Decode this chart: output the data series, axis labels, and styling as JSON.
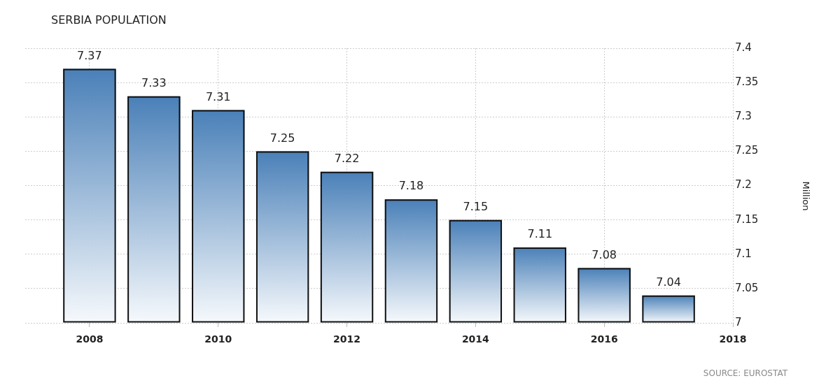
{
  "chart_data": {
    "type": "bar",
    "title": "SERBIA POPULATION",
    "ylabel": "Million",
    "annotations": [
      "SOURCE: EUROSTAT"
    ],
    "x": [
      2008,
      2009,
      2010,
      2011,
      2012,
      2013,
      2014,
      2015,
      2016,
      2017
    ],
    "values": [
      7.37,
      7.33,
      7.31,
      7.25,
      7.22,
      7.18,
      7.15,
      7.11,
      7.08,
      7.04
    ],
    "color": "#4a80b8",
    "xlim": [
      2007,
      2018
    ],
    "xticks": [
      2008,
      2010,
      2012,
      2014,
      2016,
      2018
    ],
    "ylim": [
      7,
      7.4
    ],
    "yticks": [
      7,
      7.05,
      7.1,
      7.15,
      7.2,
      7.25,
      7.3,
      7.35,
      7.4
    ],
    "grid": true,
    "data_labels": true
  }
}
